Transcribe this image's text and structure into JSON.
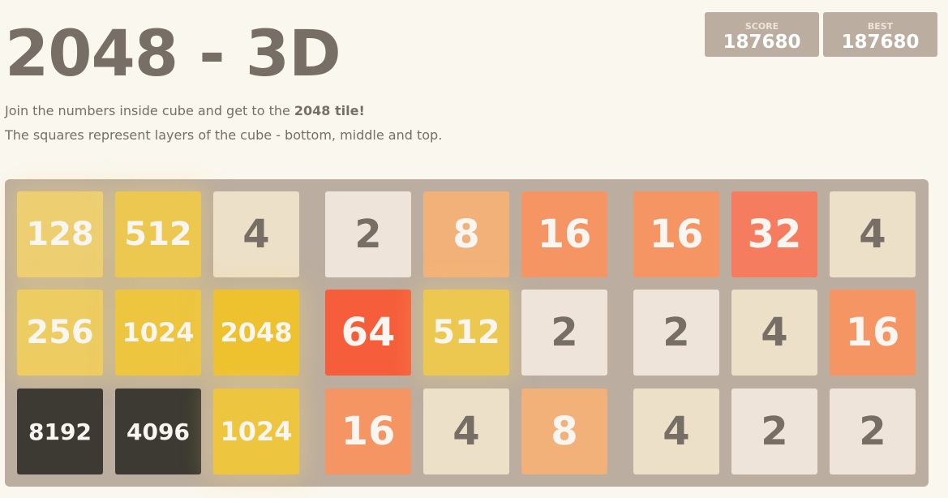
{
  "header": {
    "title": "2048 - 3D",
    "intro_prefix": "Join the numbers inside cube and get to the ",
    "intro_bold": "2048 tile!",
    "intro_line2": "The squares represent layers of the cube - bottom, middle and top."
  },
  "scores": {
    "score_label": "SCORE",
    "score": "187680",
    "best_label": "BEST",
    "best": "187680"
  },
  "board": {
    "layers": [
      [
        [
          "128",
          "512",
          "4"
        ],
        [
          "256",
          "1024",
          "2048"
        ],
        [
          "8192",
          "4096",
          "1024"
        ]
      ],
      [
        [
          "2",
          "8",
          "16"
        ],
        [
          "64",
          "512",
          "2"
        ],
        [
          "16",
          "4",
          "8"
        ]
      ],
      [
        [
          "16",
          "32",
          "4"
        ],
        [
          "2",
          "4",
          "16"
        ],
        [
          "4",
          "2",
          "2"
        ]
      ]
    ]
  },
  "tile_colors": {
    "2": "#eee4da",
    "4": "#ede0c8",
    "8": "#f2b179",
    "16": "#f59563",
    "32": "#f67c5f",
    "64": "#f65e3b",
    "128": "#edcf72",
    "256": "#edcc61",
    "512": "#edc850",
    "1024": "#edc53f",
    "2048": "#edc22e",
    "4096": "#3c3a32",
    "8192": "#3c3a32"
  }
}
